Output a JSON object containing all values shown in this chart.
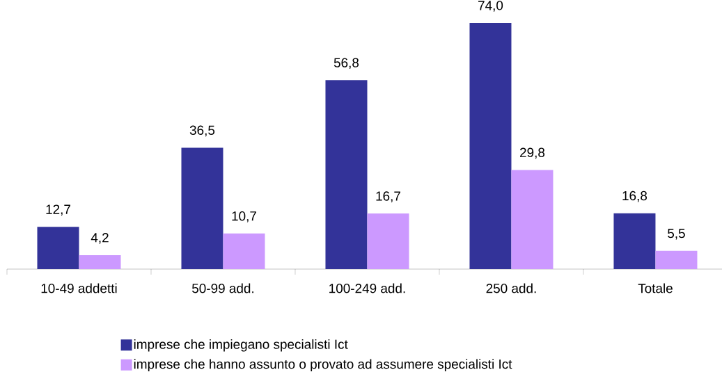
{
  "chart_data": {
    "type": "bar",
    "categories": [
      "10-49 addetti",
      "50-99 add.",
      "100-249 add.",
      "250 add.",
      "Totale"
    ],
    "series": [
      {
        "name": "imprese che impiegano specialisti Ict",
        "color": "#333399",
        "values": [
          12.7,
          36.5,
          56.8,
          74.0,
          16.8
        ],
        "value_labels": [
          "12,7",
          "36,5",
          "56,8",
          "74,0",
          "16,8"
        ]
      },
      {
        "name": "imprese che hanno assunto o provato ad assumere specialisti Ict",
        "color": "#cc99ff",
        "values": [
          4.2,
          10.7,
          16.7,
          29.8,
          5.5
        ],
        "value_labels": [
          "4,2",
          "10,7",
          "16,7",
          "29,8",
          "5,5"
        ]
      }
    ],
    "legend": "bottom"
  }
}
